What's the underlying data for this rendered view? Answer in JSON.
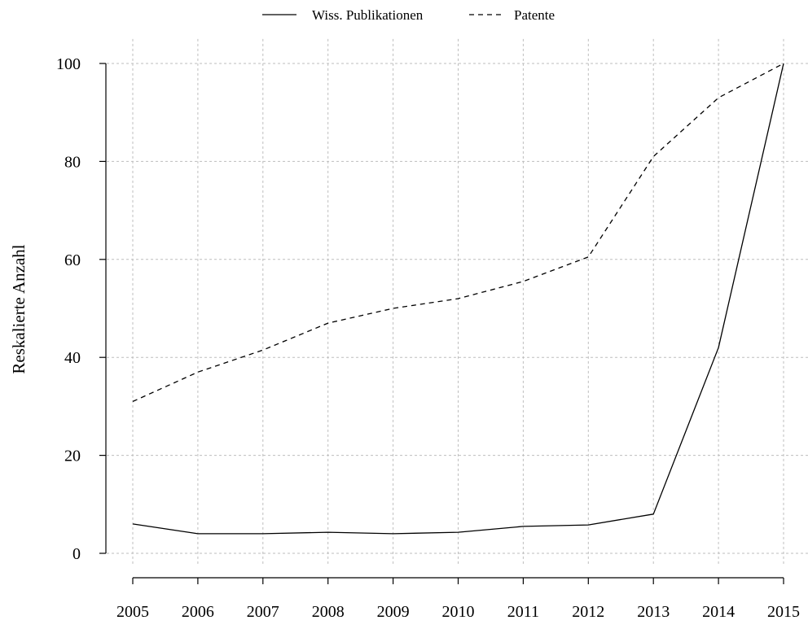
{
  "chart_data": {
    "type": "line",
    "title": "",
    "xlabel": "",
    "ylabel": "Reskalierte Anzahl",
    "categories": [
      "2005",
      "2006",
      "2007",
      "2008",
      "2009",
      "2010",
      "2011",
      "2012",
      "2013",
      "2014",
      "2015"
    ],
    "ylim": [
      -2.5,
      105
    ],
    "yticks": [
      0,
      20,
      40,
      60,
      80,
      100
    ],
    "grid": true,
    "legend": "top-center",
    "series": [
      {
        "name": "Wiss. Publikationen",
        "line_style": "solid",
        "values": [
          6,
          4,
          4,
          4.3,
          4,
          4.3,
          5.5,
          5.8,
          8,
          42,
          100
        ]
      },
      {
        "name": "Patente",
        "line_style": "dashed",
        "values": [
          31,
          37,
          41.5,
          47,
          50,
          52,
          55.5,
          60.5,
          81,
          93,
          100
        ]
      }
    ],
    "colors": {
      "line": "#000000",
      "grid": "#bdbdbd",
      "axis": "#000000"
    }
  }
}
